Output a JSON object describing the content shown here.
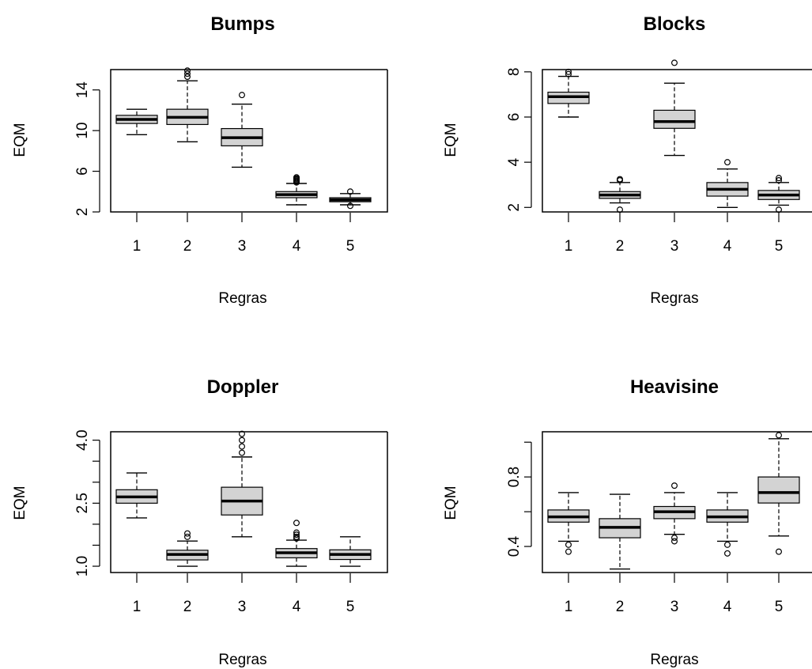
{
  "chart_data": [
    {
      "type": "boxplot",
      "title": "Bumps",
      "xlabel": "Regras",
      "ylabel": "EQM",
      "categories": [
        "1",
        "2",
        "3",
        "4",
        "5"
      ],
      "ylim": [
        2,
        16
      ],
      "yticks": [
        2,
        6,
        10,
        14
      ],
      "ytick_labels": [
        "2",
        "6",
        "10",
        "14"
      ],
      "boxes": [
        {
          "whislo": 9.6,
          "q1": 10.7,
          "med": 11.1,
          "q3": 11.5,
          "whishi": 12.1,
          "fliers": []
        },
        {
          "whislo": 8.9,
          "q1": 10.6,
          "med": 11.3,
          "q3": 12.1,
          "whishi": 14.9,
          "fliers": [
            15.3,
            15.6,
            15.9
          ]
        },
        {
          "whislo": 6.4,
          "q1": 8.5,
          "med": 9.3,
          "q3": 10.2,
          "whishi": 12.6,
          "fliers": [
            13.5
          ]
        },
        {
          "whislo": 2.7,
          "q1": 3.4,
          "med": 3.7,
          "q3": 4.0,
          "whishi": 4.8,
          "fliers": [
            4.9,
            5.0,
            5.1,
            5.2,
            5.3,
            5.4
          ]
        },
        {
          "whislo": 2.7,
          "q1": 3.0,
          "med": 3.2,
          "q3": 3.4,
          "whishi": 3.8,
          "fliers": [
            4.0,
            2.6
          ]
        }
      ]
    },
    {
      "type": "boxplot",
      "title": "Blocks",
      "xlabel": "Regras",
      "ylabel": "EQM",
      "categories": [
        "1",
        "2",
        "3",
        "4",
        "5"
      ],
      "ylim": [
        1.8,
        8.1
      ],
      "yticks": [
        2,
        4,
        6,
        8
      ],
      "ytick_labels": [
        "2",
        "4",
        "6",
        "8"
      ],
      "boxes": [
        {
          "whislo": 6.0,
          "q1": 6.6,
          "med": 6.9,
          "q3": 7.1,
          "whishi": 7.8,
          "fliers": [
            8.0,
            7.9
          ]
        },
        {
          "whislo": 2.2,
          "q1": 2.4,
          "med": 2.55,
          "q3": 2.7,
          "whishi": 3.1,
          "fliers": [
            3.2,
            3.25,
            1.9
          ]
        },
        {
          "whislo": 4.3,
          "q1": 5.5,
          "med": 5.8,
          "q3": 6.3,
          "whishi": 7.5,
          "fliers": [
            8.4
          ]
        },
        {
          "whislo": 2.0,
          "q1": 2.5,
          "med": 2.8,
          "q3": 3.1,
          "whishi": 3.7,
          "fliers": [
            4.0
          ]
        },
        {
          "whislo": 2.1,
          "q1": 2.35,
          "med": 2.55,
          "q3": 2.75,
          "whishi": 3.1,
          "fliers": [
            3.2,
            3.3,
            1.9
          ]
        }
      ]
    },
    {
      "type": "boxplot",
      "title": "Doppler",
      "xlabel": "Regras",
      "ylabel": "EQM",
      "categories": [
        "1",
        "2",
        "3",
        "4",
        "5"
      ],
      "ylim": [
        0.85,
        4.2
      ],
      "yticks": [
        1.0,
        1.5,
        2.0,
        2.5,
        3.0,
        3.5,
        4.0
      ],
      "ytick_labels": [
        "1.0",
        "",
        "",
        "2.5",
        "",
        "",
        "4.0"
      ],
      "boxes": [
        {
          "whislo": 2.15,
          "q1": 2.5,
          "med": 2.65,
          "q3": 2.82,
          "whishi": 3.22,
          "fliers": []
        },
        {
          "whislo": 1.0,
          "q1": 1.15,
          "med": 1.28,
          "q3": 1.38,
          "whishi": 1.6,
          "fliers": [
            1.7,
            1.78
          ]
        },
        {
          "whislo": 1.7,
          "q1": 2.22,
          "med": 2.55,
          "q3": 2.88,
          "whishi": 3.6,
          "fliers": [
            3.7,
            3.85,
            4.0,
            4.15
          ]
        },
        {
          "whislo": 1.0,
          "q1": 1.2,
          "med": 1.32,
          "q3": 1.42,
          "whishi": 1.62,
          "fliers": [
            1.66,
            1.7,
            1.75,
            1.8,
            2.03
          ]
        },
        {
          "whislo": 1.0,
          "q1": 1.16,
          "med": 1.28,
          "q3": 1.39,
          "whishi": 1.7,
          "fliers": []
        }
      ]
    },
    {
      "type": "boxplot",
      "title": "Heavisine",
      "xlabel": "Regras",
      "ylabel": "EQM",
      "categories": [
        "1",
        "2",
        "3",
        "4",
        "5"
      ],
      "ylim": [
        0.25,
        1.06
      ],
      "yticks": [
        0.4,
        0.6,
        0.8,
        1.0
      ],
      "ytick_labels": [
        "0.4",
        "",
        "0.8",
        ""
      ],
      "boxes": [
        {
          "whislo": 0.43,
          "q1": 0.54,
          "med": 0.57,
          "q3": 0.61,
          "whishi": 0.71,
          "fliers": [
            0.41,
            0.37
          ]
        },
        {
          "whislo": 0.27,
          "q1": 0.45,
          "med": 0.51,
          "q3": 0.56,
          "whishi": 0.7,
          "fliers": []
        },
        {
          "whislo": 0.47,
          "q1": 0.56,
          "med": 0.6,
          "q3": 0.63,
          "whishi": 0.71,
          "fliers": [
            0.75,
            0.45,
            0.43
          ]
        },
        {
          "whislo": 0.43,
          "q1": 0.54,
          "med": 0.57,
          "q3": 0.61,
          "whishi": 0.71,
          "fliers": [
            0.41,
            0.36
          ]
        },
        {
          "whislo": 0.46,
          "q1": 0.65,
          "med": 0.71,
          "q3": 0.8,
          "whishi": 1.02,
          "fliers": [
            1.04,
            0.37
          ]
        }
      ]
    }
  ],
  "colors": {
    "box_fill": "#d3d3d3",
    "stroke": "#000000",
    "background": "#ffffff"
  }
}
